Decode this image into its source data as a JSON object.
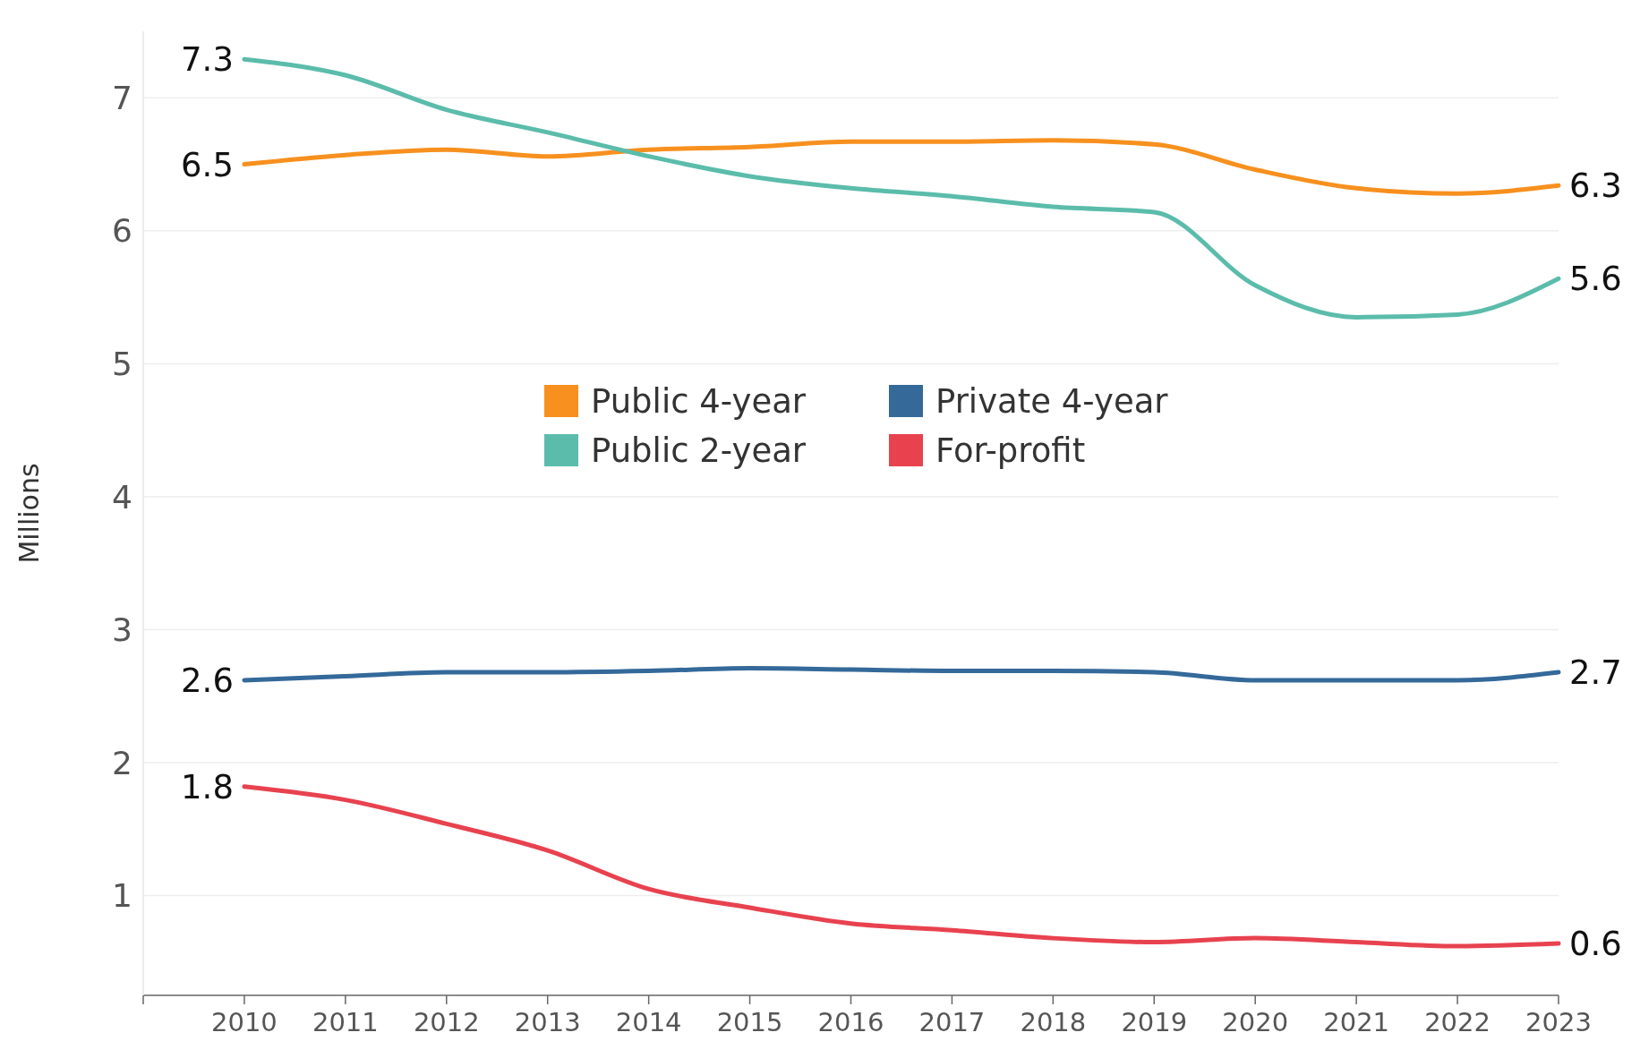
{
  "chart_data": {
    "type": "line",
    "ylabel": "Millions",
    "x": [
      2010,
      2011,
      2012,
      2013,
      2014,
      2015,
      2016,
      2017,
      2018,
      2019,
      2020,
      2021,
      2022,
      2023
    ],
    "xlim": [
      2009,
      2023
    ],
    "xticks": [
      {
        "value": 2009,
        "label": null
      },
      2010,
      2011,
      2012,
      2013,
      2014,
      2015,
      2016,
      2017,
      2018,
      2019,
      2020,
      2021,
      2022,
      2023
    ],
    "ylim": [
      0.25,
      7.5
    ],
    "yticks": [
      1,
      2,
      3,
      4,
      5,
      6,
      7
    ],
    "grid": "y",
    "legend": "top",
    "line_style": "solid",
    "marker": "none",
    "series": [
      {
        "name": "Public 4-year",
        "color": "#f7901e",
        "values": [
          6.5,
          6.57,
          6.61,
          6.56,
          6.61,
          6.63,
          6.67,
          6.67,
          6.68,
          6.65,
          6.46,
          6.32,
          6.28,
          6.34
        ],
        "value_labels": [
          "6.5",
          null,
          null,
          null,
          null,
          null,
          null,
          null,
          null,
          null,
          null,
          null,
          null,
          "6.3"
        ]
      },
      {
        "name": "Public 2-year",
        "color": "#5bbcab",
        "values": [
          7.29,
          7.17,
          6.91,
          6.74,
          6.56,
          6.41,
          6.32,
          6.26,
          6.18,
          6.14,
          5.59,
          5.35,
          5.37,
          5.64
        ],
        "value_labels": [
          "7.3",
          null,
          null,
          null,
          null,
          null,
          null,
          null,
          null,
          null,
          null,
          null,
          null,
          "5.6"
        ]
      },
      {
        "name": "Private 4-year",
        "color": "#34699a",
        "values": [
          2.62,
          2.65,
          2.68,
          2.68,
          2.69,
          2.71,
          2.7,
          2.69,
          2.69,
          2.68,
          2.62,
          2.62,
          2.62,
          2.68
        ],
        "value_labels": [
          "2.6",
          null,
          null,
          null,
          null,
          null,
          null,
          null,
          null,
          null,
          null,
          null,
          null,
          "2.7"
        ]
      },
      {
        "name": "For-profit",
        "color": "#e8424f",
        "values": [
          1.82,
          1.72,
          1.54,
          1.34,
          1.05,
          0.91,
          0.79,
          0.74,
          0.68,
          0.65,
          0.68,
          0.65,
          0.62,
          0.64
        ],
        "value_labels": [
          "1.8",
          null,
          null,
          null,
          null,
          null,
          null,
          null,
          null,
          null,
          null,
          null,
          null,
          "0.6"
        ]
      }
    ]
  }
}
